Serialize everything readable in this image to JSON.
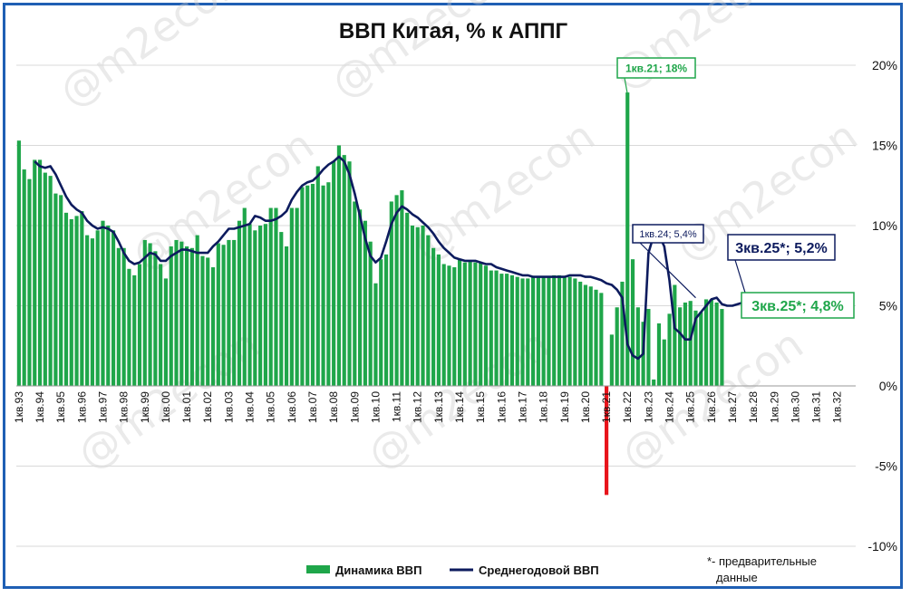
{
  "chart_data": {
    "type": "bar",
    "title": "ВВП Китая, % к АППГ",
    "ylim": [
      -10,
      20
    ],
    "y_ticks": [
      "-10%",
      "-5%",
      "0%",
      "5%",
      "10%",
      "15%",
      "20%"
    ],
    "x_tick_labels": [
      "1кв.93",
      "1кв.94",
      "1кв.95",
      "1кв.96",
      "1кв.97",
      "1кв.98",
      "1кв.99",
      "1кв.00",
      "1кв.01",
      "1кв.02",
      "1кв.03",
      "1кв.04",
      "1кв.05",
      "1кв.06",
      "1кв.07",
      "1кв.08",
      "1кв.09",
      "1кв.10",
      "1кв.11",
      "1кв.12",
      "1кв.13",
      "1кв.14",
      "1кв.15",
      "1кв.16",
      "1кв.17",
      "1кв.18",
      "1кв.19",
      "1кв.20",
      "1кв.21",
      "1кв.22",
      "1кв.23",
      "1кв.24",
      "1кв.25",
      "1кв.26",
      "1кв.27",
      "1кв.28",
      "1кв.29",
      "1кв.30",
      "1кв.31",
      "1кв.32"
    ],
    "grid": true,
    "legend_position": "bottom",
    "series": [
      {
        "name": "Динамика ВВП",
        "color": "#1fa64a",
        "style": "bar",
        "values": [
          15.3,
          13.5,
          12.9,
          14.1,
          14.1,
          13.3,
          13.1,
          12.0,
          11.9,
          10.8,
          10.4,
          10.6,
          10.9,
          9.4,
          9.2,
          9.7,
          10.3,
          10.0,
          9.7,
          8.6,
          8.6,
          7.3,
          6.9,
          7.6,
          9.1,
          8.9,
          8.4,
          7.6,
          6.7,
          8.7,
          9.1,
          9.0,
          8.7,
          8.6,
          9.4,
          8.1,
          8.0,
          7.4,
          8.9,
          8.8,
          9.1,
          9.1,
          10.3,
          11.1,
          10.1,
          9.7,
          10.0,
          10.1,
          11.1,
          11.1,
          9.6,
          8.7,
          11.1,
          11.1,
          12.4,
          12.5,
          12.6,
          13.7,
          12.5,
          12.7,
          14.0,
          15.0,
          14.4,
          14.0,
          11.5,
          11.0,
          10.3,
          9.0,
          6.4,
          7.9,
          8.2,
          11.5,
          11.9,
          12.2,
          10.8,
          10.0,
          9.9,
          10.0,
          9.4,
          8.6,
          8.2,
          7.6,
          7.5,
          7.4,
          7.9,
          7.7,
          7.8,
          7.7,
          7.7,
          7.5,
          7.2,
          7.2,
          7.0,
          7.0,
          6.9,
          6.8,
          6.7,
          6.7,
          6.8,
          6.8,
          6.8,
          6.8,
          6.9,
          6.9,
          6.8,
          6.8,
          6.7,
          6.5,
          6.3,
          6.2,
          6.0,
          5.8,
          -6.8,
          3.2,
          4.9,
          6.5,
          18.3,
          7.9,
          4.9,
          4.0,
          4.8,
          0.4,
          3.9,
          2.9,
          4.5,
          6.3,
          4.9,
          5.2,
          5.3,
          4.7,
          4.6,
          5.4,
          5.4,
          5.2,
          4.8
        ]
      },
      {
        "name": "Среднегодовой ВВП",
        "color": "#0d1b5e",
        "style": "line",
        "start_index": 3,
        "values": [
          14.0,
          13.7,
          13.6,
          13.7,
          13.2,
          12.5,
          11.8,
          11.3,
          11.0,
          10.8,
          10.3,
          10.0,
          9.8,
          9.9,
          9.8,
          9.6,
          9.0,
          8.3,
          7.8,
          7.6,
          7.7,
          8.0,
          8.3,
          8.2,
          7.8,
          7.8,
          8.1,
          8.3,
          8.5,
          8.5,
          8.4,
          8.3,
          8.3,
          8.3,
          8.7,
          9.0,
          9.4,
          9.8,
          9.8,
          9.9,
          10.0,
          10.1,
          10.6,
          10.5,
          10.3,
          10.3,
          10.4,
          10.6,
          10.9,
          11.6,
          12.1,
          12.5,
          12.7,
          12.8,
          13.1,
          13.5,
          13.8,
          14.0,
          14.3,
          14.0,
          13.2,
          12.0,
          10.6,
          9.2,
          8.1,
          7.7,
          8.0,
          9.0,
          10.1,
          10.8,
          11.2,
          11.0,
          10.7,
          10.5,
          10.2,
          9.9,
          9.5,
          9.0,
          8.6,
          8.3,
          8.0,
          7.9,
          7.8,
          7.8,
          7.8,
          7.7,
          7.6,
          7.6,
          7.4,
          7.3,
          7.2,
          7.1,
          7.0,
          6.9,
          6.9,
          6.8,
          6.8,
          6.8,
          6.8,
          6.8,
          6.8,
          6.8,
          6.9,
          6.9,
          6.9,
          6.8,
          6.8,
          6.7,
          6.6,
          6.4,
          6.3,
          6.0,
          5.5,
          2.6,
          1.9,
          1.7,
          2.0,
          8.3,
          9.4,
          9.4,
          8.7,
          6.6,
          3.6,
          3.3,
          2.9,
          2.9,
          4.2,
          4.6,
          5.0,
          5.4,
          5.5,
          5.1,
          5.0,
          5.0,
          5.1,
          5.2
        ]
      }
    ],
    "annotations": [
      {
        "text": "1кв.21; 18%",
        "color": "#1fa64a"
      },
      {
        "text": "1кв.24; 5,4%",
        "color": "#0d1b5e"
      },
      {
        "text": "3кв.25*; 5,2%",
        "color": "#0d1b5e"
      },
      {
        "text": "3кв.25*; 4,8%",
        "color": "#1fa64a"
      }
    ],
    "footnote": [
      "*- предварительные",
      "данные"
    ],
    "watermark": "@m2econ"
  }
}
